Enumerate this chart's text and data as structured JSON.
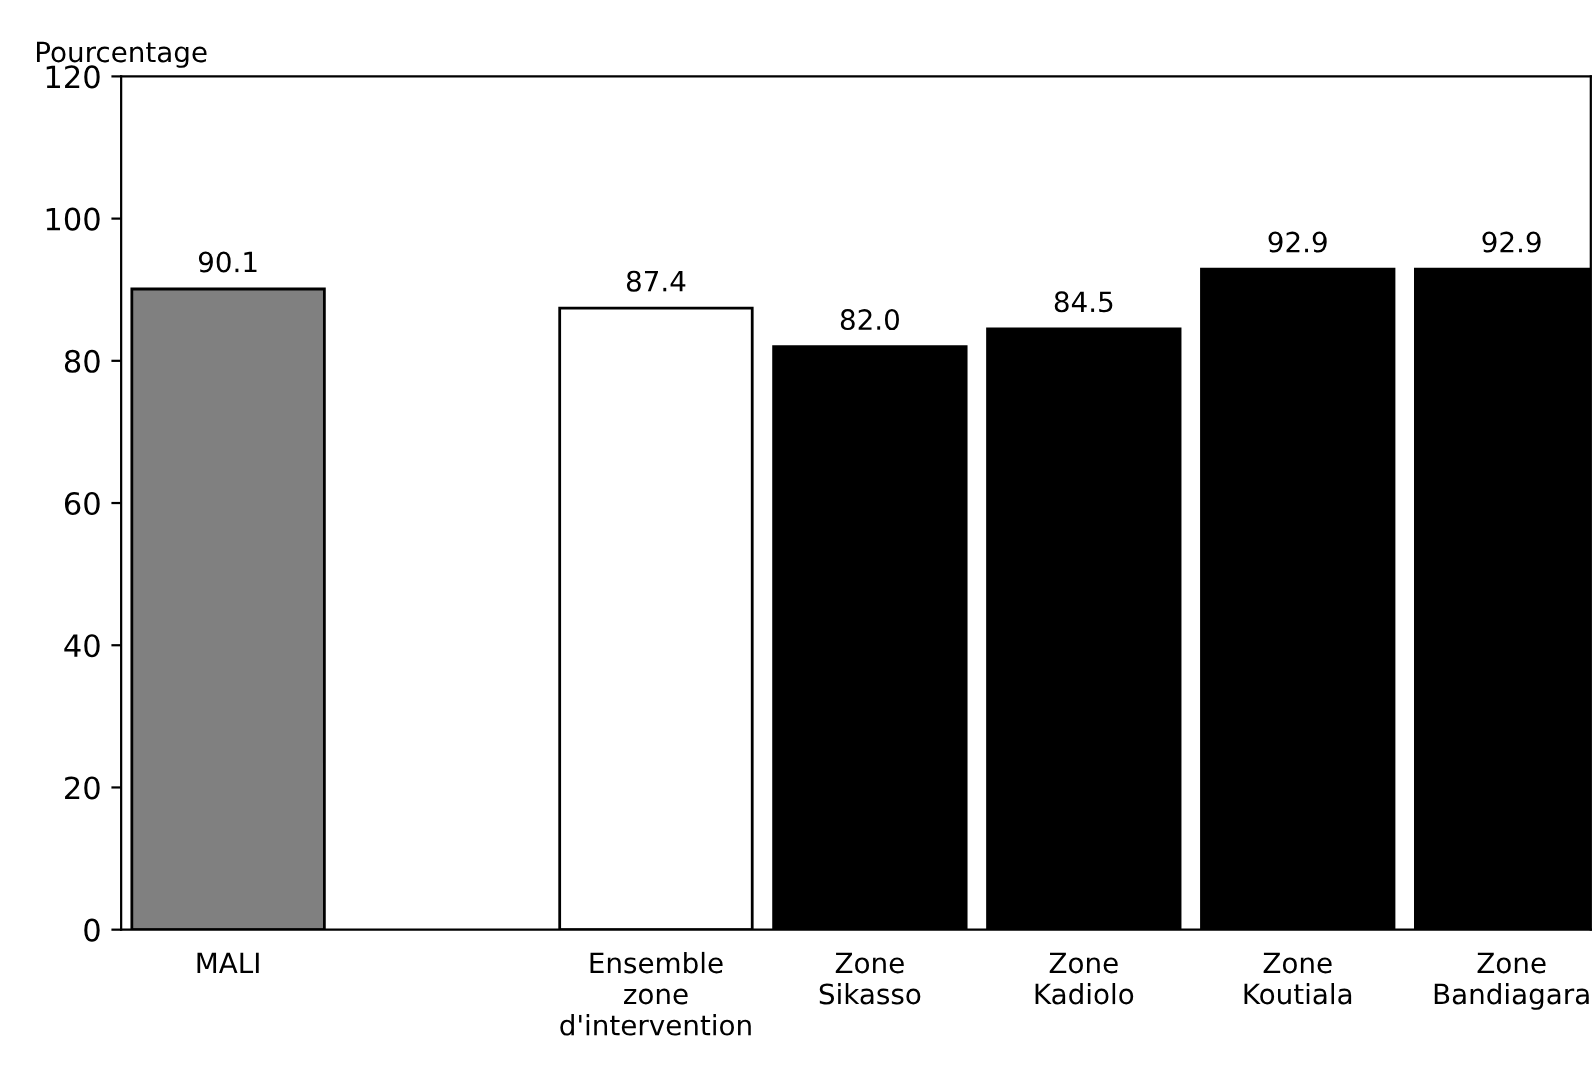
{
  "chart_data": {
    "type": "bar",
    "ylabel": "Pourcentage",
    "categories": [
      "MALI",
      null,
      "Ensemble\nzone\nd'intervention",
      "Zone\nSikasso",
      "Zone\nKadiolo",
      "Zone\nKoutiala",
      "Zone\nBandiagara"
    ],
    "values": [
      90.1,
      null,
      87.4,
      82.0,
      84.5,
      92.9,
      92.9
    ],
    "value_labels": [
      "90.1",
      null,
      "87.4",
      "82.0",
      "84.5",
      "92.9",
      "92.9"
    ],
    "colors": [
      "#808080",
      "#ffffff",
      "#ffffff",
      "#000000",
      "#000000",
      "#000000",
      "#000000"
    ],
    "ylim": [
      0,
      120
    ],
    "yticks": [
      0,
      20,
      40,
      60,
      80,
      100,
      120
    ],
    "grid": false,
    "legend": false
  }
}
